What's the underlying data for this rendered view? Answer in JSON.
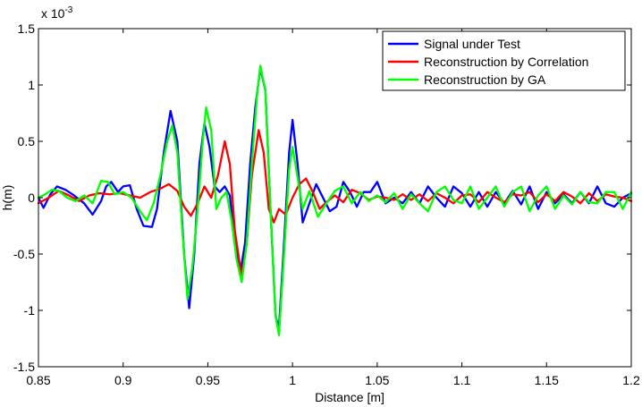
{
  "chart_data": {
    "type": "line",
    "title": "",
    "xlabel": "Distance [m]",
    "ylabel": "h(m)",
    "y_exponent_label": "x 10",
    "y_exponent_power": "-3",
    "xlim": [
      0.85,
      1.2
    ],
    "ylim": [
      -1.5,
      1.5
    ],
    "x_ticks": [
      0.85,
      0.9,
      0.95,
      1.0,
      1.05,
      1.1,
      1.15,
      1.2
    ],
    "x_tick_labels": [
      "0.85",
      "0.9",
      "0.95",
      "1",
      "1.05",
      "1.1",
      "1.15",
      "1.2"
    ],
    "y_ticks": [
      -1.5,
      -1,
      -0.5,
      0,
      0.5,
      1,
      1.5
    ],
    "y_tick_labels": [
      "-1.5",
      "-1",
      "-0.5",
      "0",
      "0.5",
      "1",
      "1.5"
    ],
    "grid": false,
    "legend_position": "top-right",
    "series": [
      {
        "name": "Signal under Test",
        "color": "#0000ff",
        "points": [
          [
            0.85,
            0.0
          ],
          [
            0.853,
            -0.09
          ],
          [
            0.857,
            0.03
          ],
          [
            0.861,
            0.1
          ],
          [
            0.866,
            0.07
          ],
          [
            0.871,
            0.02
          ],
          [
            0.877,
            -0.05
          ],
          [
            0.882,
            -0.15
          ],
          [
            0.887,
            -0.03
          ],
          [
            0.89,
            0.1
          ],
          [
            0.893,
            0.14
          ],
          [
            0.897,
            0.05
          ],
          [
            0.9,
            0.1
          ],
          [
            0.904,
            0.11
          ],
          [
            0.908,
            -0.1
          ],
          [
            0.912,
            -0.25
          ],
          [
            0.917,
            -0.26
          ],
          [
            0.92,
            -0.1
          ],
          [
            0.924,
            0.4
          ],
          [
            0.928,
            0.77
          ],
          [
            0.932,
            0.5
          ],
          [
            0.936,
            -0.5
          ],
          [
            0.939,
            -0.98
          ],
          [
            0.942,
            -0.5
          ],
          [
            0.945,
            0.3
          ],
          [
            0.948,
            0.66
          ],
          [
            0.951,
            0.45
          ],
          [
            0.954,
            0.1
          ],
          [
            0.957,
            0.05
          ],
          [
            0.96,
            0.1
          ],
          [
            0.963,
            0.02
          ],
          [
            0.966,
            -0.4
          ],
          [
            0.969,
            -0.68
          ],
          [
            0.972,
            -0.4
          ],
          [
            0.975,
            0.3
          ],
          [
            0.978,
            0.8
          ],
          [
            0.981,
            1.15
          ],
          [
            0.984,
            0.95
          ],
          [
            0.987,
            -0.1
          ],
          [
            0.99,
            -1.05
          ],
          [
            0.992,
            -1.16
          ],
          [
            0.995,
            -0.4
          ],
          [
            0.998,
            0.4
          ],
          [
            1.0,
            0.69
          ],
          [
            1.003,
            0.3
          ],
          [
            1.006,
            -0.22
          ],
          [
            1.01,
            -0.05
          ],
          [
            1.014,
            0.12
          ],
          [
            1.018,
            0.0
          ],
          [
            1.022,
            -0.12
          ],
          [
            1.026,
            -0.08
          ],
          [
            1.03,
            0.14
          ],
          [
            1.034,
            0.05
          ],
          [
            1.038,
            -0.08
          ],
          [
            1.042,
            0.05
          ],
          [
            1.046,
            0.05
          ],
          [
            1.05,
            0.14
          ],
          [
            1.055,
            -0.05
          ],
          [
            1.06,
            0.0
          ],
          [
            1.065,
            -0.05
          ],
          [
            1.07,
            0.05
          ],
          [
            1.075,
            -0.05
          ],
          [
            1.08,
            0.1
          ],
          [
            1.085,
            0.0
          ],
          [
            1.09,
            -0.08
          ],
          [
            1.095,
            0.1
          ],
          [
            1.1,
            0.04
          ],
          [
            1.105,
            -0.08
          ],
          [
            1.11,
            0.05
          ],
          [
            1.115,
            -0.08
          ],
          [
            1.12,
            0.05
          ],
          [
            1.125,
            -0.05
          ],
          [
            1.13,
            0.06
          ],
          [
            1.135,
            -0.06
          ],
          [
            1.14,
            0.1
          ],
          [
            1.145,
            -0.1
          ],
          [
            1.15,
            0.05
          ],
          [
            1.155,
            -0.05
          ],
          [
            1.16,
            0.03
          ],
          [
            1.165,
            -0.05
          ],
          [
            1.17,
            0.05
          ],
          [
            1.175,
            -0.05
          ],
          [
            1.18,
            0.1
          ],
          [
            1.185,
            -0.05
          ],
          [
            1.19,
            -0.08
          ],
          [
            1.195,
            0.0
          ],
          [
            1.2,
            0.04
          ]
        ]
      },
      {
        "name": "Reconstruction by Correlation",
        "color": "#ff0000",
        "points": [
          [
            0.85,
            -0.05
          ],
          [
            0.856,
            0.0
          ],
          [
            0.862,
            0.06
          ],
          [
            0.868,
            0.02
          ],
          [
            0.874,
            -0.03
          ],
          [
            0.88,
            0.02
          ],
          [
            0.886,
            0.04
          ],
          [
            0.892,
            0.03
          ],
          [
            0.898,
            0.04
          ],
          [
            0.904,
            0.02
          ],
          [
            0.91,
            0.0
          ],
          [
            0.916,
            0.05
          ],
          [
            0.922,
            0.08
          ],
          [
            0.927,
            0.12
          ],
          [
            0.932,
            0.06
          ],
          [
            0.936,
            -0.08
          ],
          [
            0.94,
            -0.16
          ],
          [
            0.944,
            -0.05
          ],
          [
            0.948,
            0.1
          ],
          [
            0.952,
            0.0
          ],
          [
            0.956,
            0.2
          ],
          [
            0.96,
            0.5
          ],
          [
            0.963,
            0.3
          ],
          [
            0.966,
            -0.3
          ],
          [
            0.97,
            -0.7
          ],
          [
            0.973,
            -0.4
          ],
          [
            0.976,
            0.2
          ],
          [
            0.98,
            0.6
          ],
          [
            0.983,
            0.4
          ],
          [
            0.986,
            -0.1
          ],
          [
            0.989,
            -0.22
          ],
          [
            0.992,
            -0.1
          ],
          [
            0.996,
            -0.15
          ],
          [
            1.0,
            0.0
          ],
          [
            1.004,
            0.12
          ],
          [
            1.008,
            0.17
          ],
          [
            1.012,
            0.05
          ],
          [
            1.016,
            -0.1
          ],
          [
            1.02,
            -0.04
          ],
          [
            1.025,
            0.02
          ],
          [
            1.03,
            -0.04
          ],
          [
            1.035,
            0.07
          ],
          [
            1.04,
            0.04
          ],
          [
            1.045,
            -0.02
          ],
          [
            1.05,
            0.01
          ],
          [
            1.055,
            0.0
          ],
          [
            1.06,
            -0.02
          ],
          [
            1.065,
            0.03
          ],
          [
            1.07,
            -0.02
          ],
          [
            1.075,
            0.03
          ],
          [
            1.08,
            -0.03
          ],
          [
            1.085,
            0.04
          ],
          [
            1.09,
            0.0
          ],
          [
            1.095,
            -0.05
          ],
          [
            1.1,
            0.02
          ],
          [
            1.105,
            0.03
          ],
          [
            1.11,
            -0.04
          ],
          [
            1.115,
            0.05
          ],
          [
            1.12,
            0.0
          ],
          [
            1.125,
            -0.04
          ],
          [
            1.13,
            0.03
          ],
          [
            1.135,
            0.02
          ],
          [
            1.14,
            0.05
          ],
          [
            1.145,
            -0.04
          ],
          [
            1.15,
            0.03
          ],
          [
            1.155,
            -0.03
          ],
          [
            1.16,
            0.05
          ],
          [
            1.165,
            0.01
          ],
          [
            1.17,
            -0.05
          ],
          [
            1.175,
            0.04
          ],
          [
            1.18,
            -0.03
          ],
          [
            1.185,
            0.03
          ],
          [
            1.19,
            0.01
          ],
          [
            1.195,
            0.0
          ],
          [
            1.2,
            -0.03
          ]
        ]
      },
      {
        "name": "Reconstruction by GA",
        "color": "#00ff00",
        "points": [
          [
            0.85,
            0.0
          ],
          [
            0.854,
            0.03
          ],
          [
            0.858,
            0.07
          ],
          [
            0.862,
            0.06
          ],
          [
            0.867,
            0.0
          ],
          [
            0.872,
            -0.03
          ],
          [
            0.877,
            0.02
          ],
          [
            0.882,
            -0.05
          ],
          [
            0.887,
            0.15
          ],
          [
            0.891,
            0.14
          ],
          [
            0.895,
            0.03
          ],
          [
            0.9,
            0.05
          ],
          [
            0.905,
            0.0
          ],
          [
            0.91,
            -0.12
          ],
          [
            0.914,
            -0.2
          ],
          [
            0.918,
            -0.05
          ],
          [
            0.922,
            0.2
          ],
          [
            0.926,
            0.5
          ],
          [
            0.929,
            0.64
          ],
          [
            0.932,
            0.4
          ],
          [
            0.935,
            -0.3
          ],
          [
            0.938,
            -0.9
          ],
          [
            0.941,
            -0.6
          ],
          [
            0.944,
            -0.1
          ],
          [
            0.947,
            0.5
          ],
          [
            0.949,
            0.8
          ],
          [
            0.952,
            0.6
          ],
          [
            0.955,
            -0.1
          ],
          [
            0.958,
            0.0
          ],
          [
            0.961,
            0.05
          ],
          [
            0.964,
            -0.2
          ],
          [
            0.967,
            -0.55
          ],
          [
            0.97,
            -0.75
          ],
          [
            0.973,
            -0.4
          ],
          [
            0.976,
            0.3
          ],
          [
            0.979,
            0.9
          ],
          [
            0.981,
            1.17
          ],
          [
            0.984,
            0.95
          ],
          [
            0.987,
            -0.1
          ],
          [
            0.99,
            -1.05
          ],
          [
            0.992,
            -1.22
          ],
          [
            0.995,
            -0.5
          ],
          [
            0.998,
            0.25
          ],
          [
            1.0,
            0.45
          ],
          [
            1.003,
            0.18
          ],
          [
            1.006,
            -0.1
          ],
          [
            1.01,
            0.06
          ],
          [
            1.015,
            -0.17
          ],
          [
            1.02,
            -0.05
          ],
          [
            1.025,
            0.06
          ],
          [
            1.03,
            0.1
          ],
          [
            1.035,
            -0.05
          ],
          [
            1.04,
            0.05
          ],
          [
            1.045,
            -0.03
          ],
          [
            1.05,
            0.02
          ],
          [
            1.055,
            -0.04
          ],
          [
            1.06,
            0.04
          ],
          [
            1.065,
            -0.1
          ],
          [
            1.07,
            0.03
          ],
          [
            1.075,
            -0.05
          ],
          [
            1.08,
            -0.12
          ],
          [
            1.085,
            0.05
          ],
          [
            1.09,
            0.1
          ],
          [
            1.095,
            -0.02
          ],
          [
            1.1,
            -0.05
          ],
          [
            1.105,
            0.1
          ],
          [
            1.11,
            -0.1
          ],
          [
            1.115,
            0.0
          ],
          [
            1.12,
            0.1
          ],
          [
            1.125,
            -0.08
          ],
          [
            1.13,
            0.05
          ],
          [
            1.135,
            0.1
          ],
          [
            1.14,
            -0.12
          ],
          [
            1.145,
            0.02
          ],
          [
            1.15,
            0.1
          ],
          [
            1.155,
            -0.1
          ],
          [
            1.16,
            0.02
          ],
          [
            1.165,
            -0.06
          ],
          [
            1.17,
            0.05
          ],
          [
            1.175,
            -0.04
          ],
          [
            1.18,
            -0.05
          ],
          [
            1.185,
            0.05
          ],
          [
            1.19,
            0.05
          ],
          [
            1.195,
            -0.1
          ],
          [
            1.2,
            0.05
          ]
        ]
      }
    ]
  }
}
